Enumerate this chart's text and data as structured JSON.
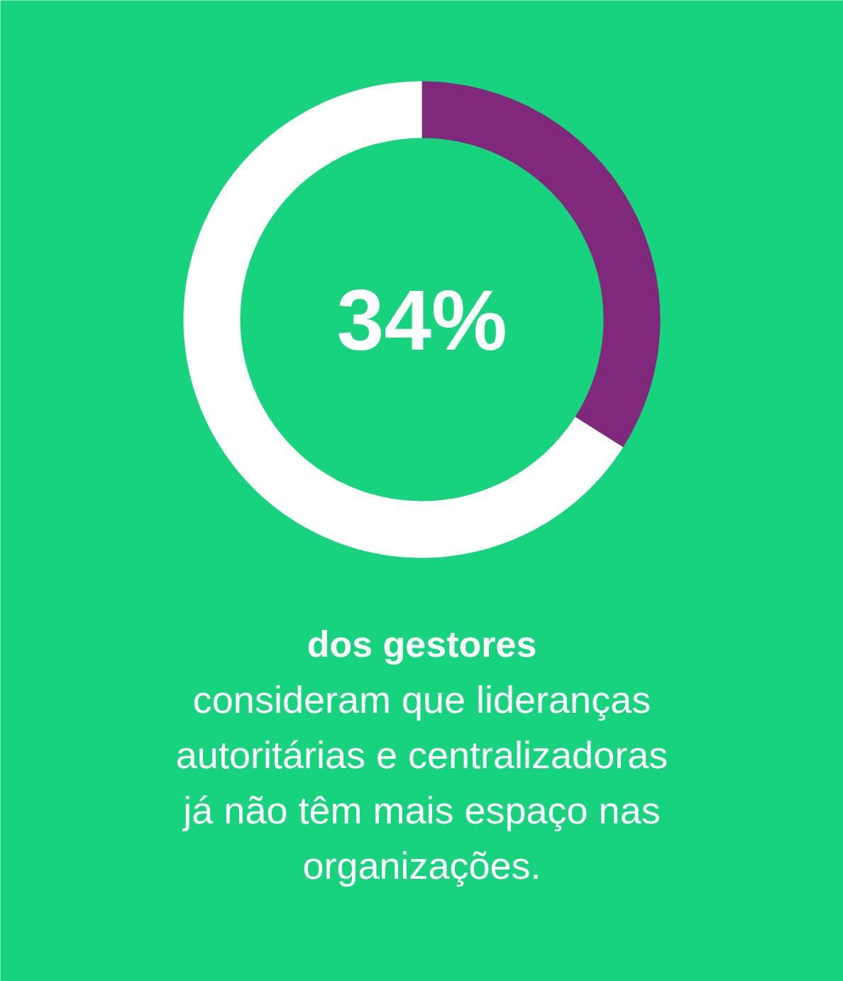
{
  "chart_data": {
    "type": "donut",
    "categories": [
      null,
      null
    ],
    "values": [
      34,
      66
    ],
    "colors": [
      "#80287c",
      "#ffffff"
    ],
    "value_labels": [
      "34%",
      null
    ],
    "annotations": [
      "dos gestores",
      "consideram que lideranças autoritárias e centralizadoras já não têm mais espaço nas organizações."
    ]
  }
}
